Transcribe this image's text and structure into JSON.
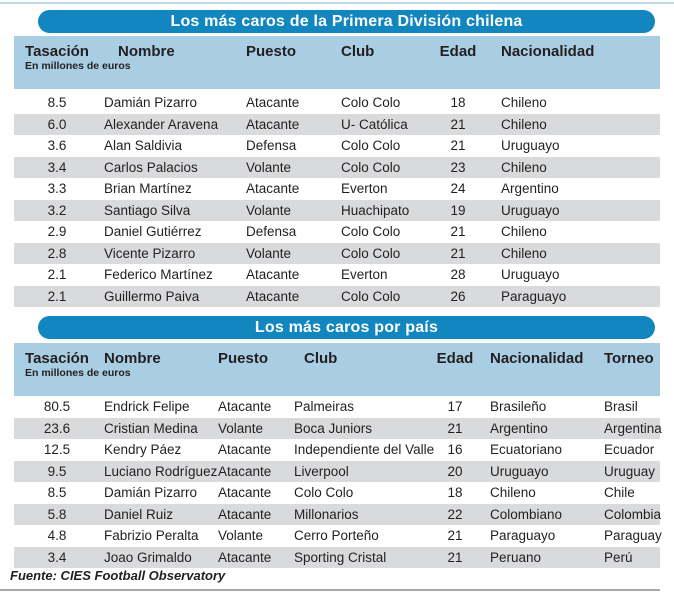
{
  "colors": {
    "title_bar_blue": "#1186bf",
    "header_band_blue": "#a9cee3",
    "row_stripe_gray": "#d9dadc",
    "text": "#231f20",
    "top_rule": "#bcd9e8",
    "bottom_rule": "#a8aaad"
  },
  "footer": {
    "source": "Fuente: CIES Football Observatory"
  },
  "chart_data": [
    {
      "type": "table",
      "title": "Los más caros de la Primera División chilena",
      "columns": [
        "Tasación",
        "Nombre",
        "Puesto",
        "Club",
        "Edad",
        "Nacionalidad"
      ],
      "tasacion_note": "En millones de euros",
      "rows": [
        [
          "8.5",
          "Damián Pizarro",
          "Atacante",
          "Colo Colo",
          "18",
          "Chileno"
        ],
        [
          "6.0",
          "Alexander Aravena",
          "Atacante",
          "U- Católica",
          "21",
          "Chileno"
        ],
        [
          "3.6",
          "Alan Saldivia",
          "Defensa",
          "Colo Colo",
          "21",
          "Uruguayo"
        ],
        [
          "3.4",
          "Carlos Palacios",
          "Volante",
          "Colo Colo",
          "23",
          "Chileno"
        ],
        [
          "3.3",
          "Brian Martínez",
          "Atacante",
          "Everton",
          "24",
          "Argentino"
        ],
        [
          "3.2",
          "Santiago Silva",
          "Volante",
          "Huachipato",
          "19",
          "Uruguayo"
        ],
        [
          "2.9",
          "Daniel Gutiérrez",
          "Defensa",
          "Colo Colo",
          "21",
          "Chileno"
        ],
        [
          "2.8",
          "Vicente Pizarro",
          "Volante",
          "Colo Colo",
          "21",
          "Chileno"
        ],
        [
          "2.1",
          "Federico Martínez",
          "Atacante",
          "Everton",
          "28",
          "Uruguayo"
        ],
        [
          "2.1",
          "Guillermo Paiva",
          "Atacante",
          "Colo Colo",
          "26",
          "Paraguayo"
        ]
      ]
    },
    {
      "type": "table",
      "title": "Los más caros por país",
      "columns": [
        "Tasación",
        "Nombre",
        "Puesto",
        "Club",
        "Edad",
        "Nacionalidad",
        "Torneo"
      ],
      "tasacion_note": "En millones de euros",
      "rows": [
        [
          "80.5",
          "Endrick Felipe",
          "Atacante",
          "Palmeiras",
          "17",
          "Brasileño",
          "Brasil"
        ],
        [
          "23.6",
          "Cristian Medina",
          "Volante",
          "Boca Juniors",
          "21",
          "Argentino",
          "Argentina"
        ],
        [
          "12.5",
          "Kendry Páez",
          "Atacante",
          "Independiente del Valle",
          "16",
          "Ecuatoriano",
          "Ecuador"
        ],
        [
          "9.5",
          "Luciano Rodríguez",
          "Atacante",
          "Liverpool",
          "20",
          "Uruguayo",
          "Uruguay"
        ],
        [
          "8.5",
          "Damián Pizarro",
          "Atacante",
          "Colo Colo",
          "18",
          "Chileno",
          "Chile"
        ],
        [
          "5.8",
          "Daniel Ruiz",
          "Atacante",
          "Millonarios",
          "22",
          "Colombiano",
          "Colombia"
        ],
        [
          "4.8",
          "Fabrizio Peralta",
          "Volante",
          "Cerro Porteño",
          "21",
          "Paraguayo",
          "Paraguay"
        ],
        [
          "3.4",
          "Joao Grimaldo",
          "Atacante",
          "Sporting Cristal",
          "21",
          "Peruano",
          "Perú"
        ]
      ]
    }
  ]
}
